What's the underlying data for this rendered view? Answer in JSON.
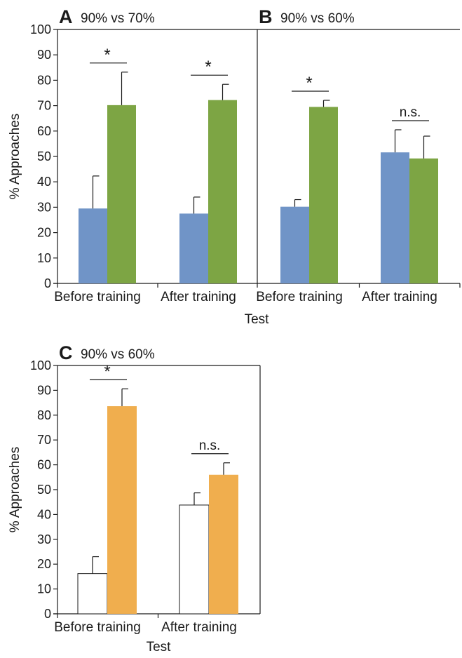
{
  "chart_data": [
    {
      "type": "bar",
      "panel_letter": "A",
      "subtitle": "90% vs 70%",
      "categories": [
        "Before training",
        "After training"
      ],
      "series": [
        {
          "color": "#7094c7",
          "values": [
            29.5,
            27.5
          ],
          "errors": [
            12.8,
            6.5
          ]
        },
        {
          "color": "#7da544",
          "values": [
            70.2,
            72.2
          ],
          "errors": [
            13.0,
            6.2
          ]
        }
      ],
      "significance": [
        "*",
        "*"
      ],
      "ylabel": "% Approaches",
      "ylim": [
        0,
        100
      ],
      "yticks": [
        0,
        10,
        20,
        30,
        40,
        50,
        60,
        70,
        80,
        90,
        100
      ]
    },
    {
      "type": "bar",
      "panel_letter": "B",
      "subtitle": "90% vs 60%",
      "categories": [
        "Before training",
        "After training"
      ],
      "series": [
        {
          "color": "#7094c7",
          "values": [
            30.2,
            51.6
          ],
          "errors": [
            2.8,
            8.9
          ]
        },
        {
          "color": "#7da544",
          "values": [
            69.5,
            49.2
          ],
          "errors": [
            2.6,
            8.8
          ]
        }
      ],
      "significance": [
        "*",
        "n.s."
      ],
      "ylim": [
        0,
        100
      ]
    },
    {
      "type": "bar",
      "panel_letter": "C",
      "subtitle": "90% vs 60%",
      "categories": [
        "Before training",
        "After training"
      ],
      "series": [
        {
          "color": "#ffffff",
          "values": [
            16.2,
            43.8
          ],
          "errors": [
            6.8,
            4.9
          ]
        },
        {
          "color": "#f0ae4e",
          "values": [
            83.6,
            56.0
          ],
          "errors": [
            7.0,
            4.8
          ]
        }
      ],
      "significance": [
        "*",
        "n.s."
      ],
      "xlabel": "Test",
      "ylabel": "% Approaches",
      "ylim": [
        0,
        100
      ],
      "yticks": [
        0,
        10,
        20,
        30,
        40,
        50,
        60,
        70,
        80,
        90,
        100
      ]
    }
  ],
  "shared_xlabel_top": "Test"
}
